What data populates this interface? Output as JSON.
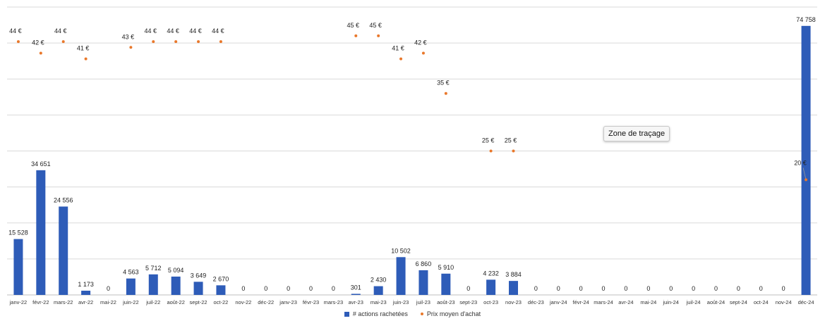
{
  "chart_data": {
    "type": "bar",
    "categories": [
      "janv-22",
      "févr-22",
      "mars-22",
      "avr-22",
      "mai-22",
      "juin-22",
      "juil-22",
      "août-22",
      "sept-22",
      "oct-22",
      "nov-22",
      "déc-22",
      "janv-23",
      "févr-23",
      "mars-23",
      "avr-23",
      "mai-23",
      "juin-23",
      "juil-23",
      "août-23",
      "sept-23",
      "oct-23",
      "nov-23",
      "déc-23",
      "janv-24",
      "févr-24",
      "mars-24",
      "avr-24",
      "mai-24",
      "juin-24",
      "juil-24",
      "août-24",
      "sept-24",
      "oct-24",
      "nov-24",
      "déc-24"
    ],
    "series": [
      {
        "name": "# actions rachetées",
        "type": "bar",
        "color": "#2E5CB8",
        "values": [
          15528,
          34651,
          24556,
          1173,
          0,
          4563,
          5712,
          5094,
          3649,
          2670,
          0,
          0,
          0,
          0,
          0,
          301,
          2430,
          10502,
          6860,
          5910,
          0,
          4232,
          3884,
          0,
          0,
          0,
          0,
          0,
          0,
          0,
          0,
          0,
          0,
          0,
          0,
          74758
        ],
        "labels": [
          "15 528",
          "34 651",
          "24 556",
          "1 173",
          "0",
          "4 563",
          "5 712",
          "5 094",
          "3 649",
          "2 670",
          "0",
          "0",
          "0",
          "0",
          "0",
          "301",
          "2 430",
          "10 502",
          "6 860",
          "5 910",
          "0",
          "4 232",
          "3 884",
          "0",
          "0",
          "0",
          "0",
          "0",
          "0",
          "0",
          "0",
          "0",
          "0",
          "0",
          "0",
          "74 758"
        ]
      },
      {
        "name": "Prix moyen d'achat",
        "type": "scatter",
        "color": "#E9782B",
        "values": [
          44,
          42,
          44,
          41,
          null,
          43,
          44,
          44,
          44,
          44,
          null,
          null,
          null,
          null,
          null,
          45,
          45,
          41,
          42,
          35,
          null,
          25,
          25,
          null,
          null,
          null,
          null,
          null,
          null,
          null,
          null,
          null,
          null,
          null,
          null,
          20
        ],
        "labels": [
          "44 €",
          "42 €",
          "44 €",
          "41 €",
          null,
          "43 €",
          "44 €",
          "44 €",
          "44 €",
          "44 €",
          null,
          null,
          null,
          null,
          null,
          "45 €",
          "45 €",
          "41 €",
          "42 €",
          "35 €",
          null,
          "25 €",
          "25 €",
          null,
          null,
          null,
          null,
          null,
          null,
          null,
          null,
          null,
          null,
          null,
          null,
          "20 €"
        ]
      }
    ],
    "grid": true,
    "legend": "bottom",
    "ylim": [
      0,
      80000
    ],
    "y2lim": [
      0,
      50
    ]
  },
  "tooltip": {
    "text": "Zone de traçage"
  },
  "legend": {
    "bar_label": "# actions rachetées",
    "dot_label": "Prix moyen d'achat"
  }
}
